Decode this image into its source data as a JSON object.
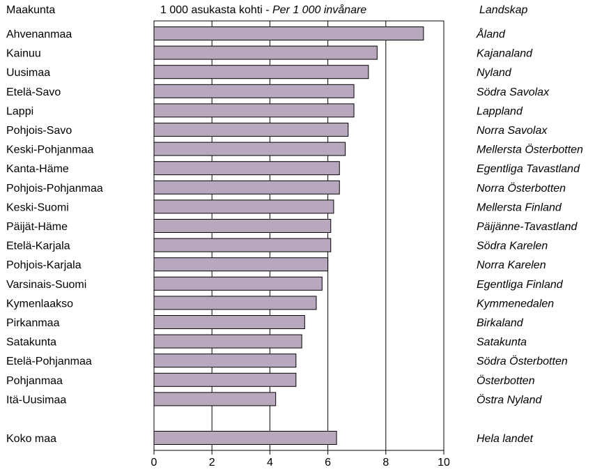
{
  "header": {
    "left": "Maakunta",
    "middle_fi": "1 000 asukasta kohti - ",
    "middle_sv": "Per 1 000 invånare",
    "right": "Landskap"
  },
  "colors": {
    "bar_fill": "#b8a8be",
    "bar_stroke": "#000000",
    "axis": "#000000"
  },
  "chart_data": {
    "type": "bar",
    "orientation": "horizontal",
    "title": "1 000 asukasta kohti - Per 1 000 invånare",
    "xlim": [
      0,
      10
    ],
    "xticks": [
      0,
      2,
      4,
      6,
      8,
      10
    ],
    "grid": true,
    "categories": [
      {
        "fi": "Ahvenanmaa",
        "sv": "Åland",
        "value": 9.3
      },
      {
        "fi": "Kainuu",
        "sv": "Kajanaland",
        "value": 7.7
      },
      {
        "fi": "Uusimaa",
        "sv": "Nyland",
        "value": 7.4
      },
      {
        "fi": "Etelä-Savo",
        "sv": "Södra Savolax",
        "value": 6.9
      },
      {
        "fi": "Lappi",
        "sv": "Lappland",
        "value": 6.9
      },
      {
        "fi": "Pohjois-Savo",
        "sv": "Norra Savolax",
        "value": 6.7
      },
      {
        "fi": "Keski-Pohjanmaa",
        "sv": "Mellersta Österbotten",
        "value": 6.6
      },
      {
        "fi": "Kanta-Häme",
        "sv": "Egentliga Tavastland",
        "value": 6.4
      },
      {
        "fi": "Pohjois-Pohjanmaa",
        "sv": "Norra Österbotten",
        "value": 6.4
      },
      {
        "fi": "Keski-Suomi",
        "sv": "Mellersta Finland",
        "value": 6.2
      },
      {
        "fi": "Päijät-Häme",
        "sv": "Päijänne-Tavastland",
        "value": 6.1
      },
      {
        "fi": "Etelä-Karjala",
        "sv": "Södra Karelen",
        "value": 6.1
      },
      {
        "fi": "Pohjois-Karjala",
        "sv": "Norra Karelen",
        "value": 6.0
      },
      {
        "fi": "Varsinais-Suomi",
        "sv": "Egentliga Finland",
        "value": 5.8
      },
      {
        "fi": "Kymenlaakso",
        "sv": "Kymmenedalen",
        "value": 5.6
      },
      {
        "fi": "Pirkanmaa",
        "sv": "Birkaland",
        "value": 5.2
      },
      {
        "fi": "Satakunta",
        "sv": "Satakunta",
        "value": 5.1
      },
      {
        "fi": "Etelä-Pohjanmaa",
        "sv": "Södra Österbotten",
        "value": 4.9
      },
      {
        "fi": "Pohjanmaa",
        "sv": "Österbotten",
        "value": 4.9
      },
      {
        "fi": "Itä-Uusimaa",
        "sv": "Östra Nyland",
        "value": 4.2
      }
    ],
    "total": {
      "fi": "Koko maa",
      "sv": "Hela landet",
      "value": 6.3
    }
  }
}
